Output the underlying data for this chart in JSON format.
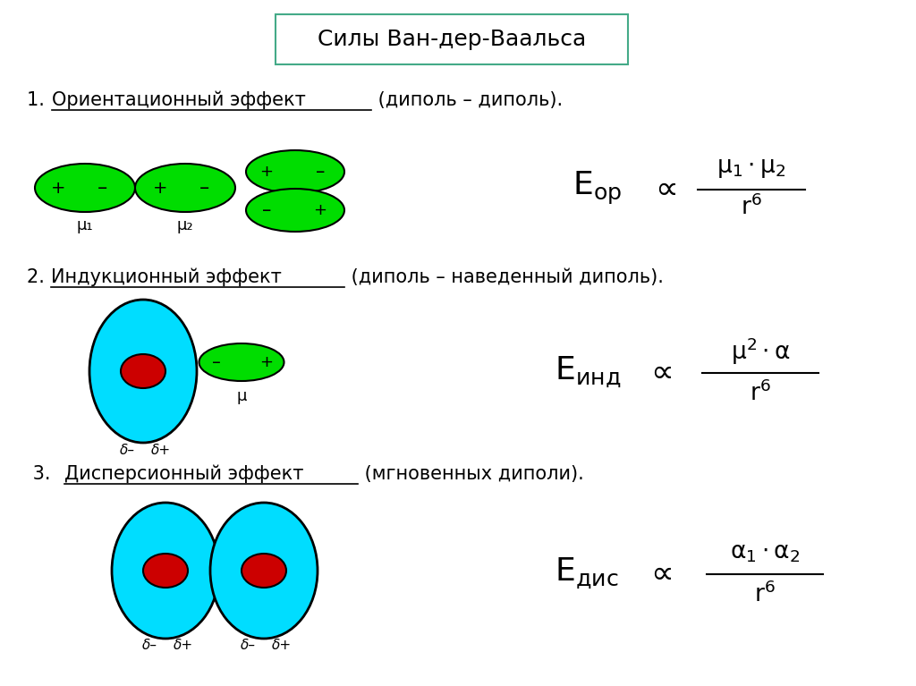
{
  "title": "Силы Ван-дер-Ваальса",
  "bg_color": "#ffffff",
  "green_color": "#00dd00",
  "cyan_color": "#00ddff",
  "red_color": "#cc0000",
  "black": "#000000",
  "box_edge_color": "#44aa88",
  "title_fontsize": 18,
  "label_fontsize": 15,
  "formula_fontsize": 20,
  "small_fontsize": 11,
  "section1_prefix": "1. ",
  "section1_underlined": "Ориентационный эффект",
  "section1_rest": " (диполь – диполь).",
  "section2_prefix": "2. ",
  "section2_underlined": "Индукционный эффект",
  "section2_rest": " (диполь – наведенный диполь).",
  "section3_prefix": " 3. ",
  "section3_underlined": "Дисперсионный эффект",
  "section3_rest": " (мгновенных диполи)."
}
